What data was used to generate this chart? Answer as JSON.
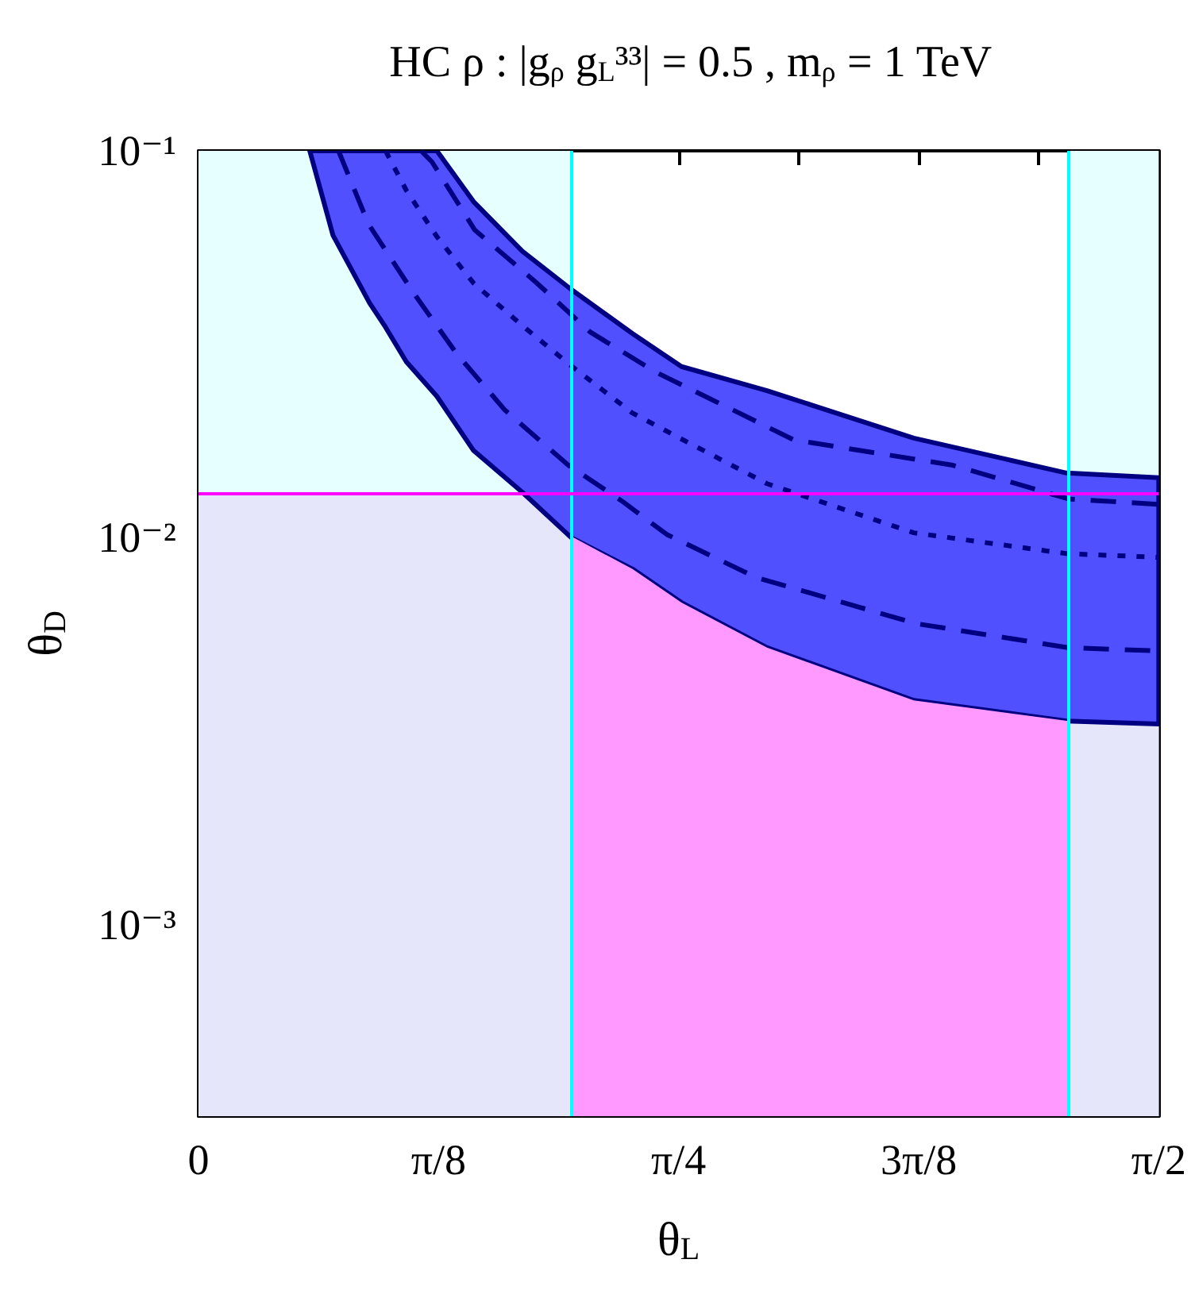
{
  "chart_data": {
    "type": "line",
    "title": "HC ρ : |g$_{ρ}$ g$_{L}$³³| = 0.5 , m$_{ρ}$ = 1 TeV",
    "xlabel": "θ$_{L}$",
    "ylabel": "θ$_{D}$",
    "log": "y",
    "marker": "none",
    "xlim": [
      0,
      1.5708
    ],
    "ylim": [
      0.00032,
      0.1
    ],
    "xticks": [
      {
        "value": 0,
        "label": "0"
      },
      {
        "value": 0.19635,
        "label": null
      },
      {
        "value": 0.3927,
        "label": "π/8"
      },
      {
        "value": 0.58905,
        "label": null
      },
      {
        "value": 0.7854,
        "label": "π/4"
      },
      {
        "value": 0.98175,
        "label": null
      },
      {
        "value": 1.1781,
        "label": "3π/8"
      },
      {
        "value": 1.37445,
        "label": null
      },
      {
        "value": 1.5708,
        "label": "π/2"
      }
    ],
    "yticks": [
      {
        "value": 0.0004,
        "label": null
      },
      {
        "value": 0.0005,
        "label": null
      },
      {
        "value": 0.0006,
        "label": null
      },
      {
        "value": 0.0007,
        "label": null
      },
      {
        "value": 0.0008,
        "label": null
      },
      {
        "value": 0.0009,
        "label": null
      },
      {
        "value": 0.001,
        "label": "10⁻³"
      },
      {
        "value": 0.002,
        "label": null
      },
      {
        "value": 0.003,
        "label": null
      },
      {
        "value": 0.004,
        "label": null
      },
      {
        "value": 0.005,
        "label": null
      },
      {
        "value": 0.006,
        "label": null
      },
      {
        "value": 0.007,
        "label": null
      },
      {
        "value": 0.008,
        "label": null
      },
      {
        "value": 0.009,
        "label": null
      },
      {
        "value": 0.01,
        "label": "10⁻²"
      },
      {
        "value": 0.02,
        "label": null
      },
      {
        "value": 0.03,
        "label": null
      },
      {
        "value": 0.04,
        "label": null
      },
      {
        "value": 0.05,
        "label": null
      },
      {
        "value": 0.06,
        "label": null
      },
      {
        "value": 0.07,
        "label": null
      },
      {
        "value": 0.08,
        "label": null
      },
      {
        "value": 0.09,
        "label": null
      },
      {
        "value": 0.1,
        "label": "10⁻¹"
      }
    ],
    "bands": [
      {
        "axis": "x",
        "from": 0,
        "to": 0.609,
        "color": "#e6ffff"
      },
      {
        "axis": "x",
        "from": 1.423,
        "to": 1.5708,
        "color": "#e6ffff"
      },
      {
        "axis": "y",
        "from": 0.00032,
        "to": 0.013,
        "color": "#e6e6fa"
      }
    ],
    "ref_lines": [
      {
        "axis": "x",
        "value": 0.609,
        "color": "#00ffff"
      },
      {
        "axis": "x",
        "value": 1.423,
        "color": "#00ffff"
      },
      {
        "axis": "y",
        "value": 0.013,
        "color": "#ff00ff"
      }
    ],
    "series": [
      {
        "type": "area",
        "color": "#ff99ff",
        "x": [
          0.609,
          0.71,
          0.79,
          0.93,
          1.17,
          1.423
        ],
        "values": [
          0.0101,
          0.0083,
          0.0068,
          0.0052,
          0.0038,
          0.00336
        ]
      },
      {
        "color": "#000080",
        "line_style": "dotted",
        "x": [
          0.182,
          0.22,
          0.28,
          0.306,
          0.34,
          0.39,
          0.45,
          0.53,
          0.61,
          0.71,
          0.79,
          0.93,
          1.17,
          1.42,
          1.5708
        ],
        "values": [
          null,
          null,
          null,
          0.1,
          0.079,
          0.06,
          0.0455,
          0.0353,
          0.0278,
          0.021,
          0.018,
          0.0138,
          0.0103,
          0.0091,
          0.0089
        ],
        "lower": [
          0.1,
          0.0605,
          0.0404,
          0.035,
          0.0285,
          0.0232,
          0.0168,
          0.0131,
          0.01,
          0.0083,
          0.0068,
          0.0052,
          0.0038,
          0.00336,
          0.0033
        ],
        "upper": [
          0.1,
          0.1,
          0.1,
          0.1,
          0.1,
          0.1,
          0.0739,
          0.055,
          0.0438,
          0.0337,
          0.0277,
          0.024,
          0.0181,
          0.0147,
          0.0143
        ]
      },
      {
        "color": "#000080",
        "line_style": "dashed",
        "x": [
          0.364,
          0.382,
          0.452,
          0.553,
          0.641,
          0.748,
          0.974,
          1.234,
          1.423,
          1.5708
        ],
        "values": [
          0.1,
          0.0936,
          0.0624,
          0.0456,
          0.034,
          0.0268,
          0.0179,
          0.0154,
          0.0126,
          0.0122
        ]
      },
      {
        "color": "#000080",
        "line_style": "dashed",
        "x": [
          0.229,
          0.278,
          0.351,
          0.423,
          0.501,
          0.605,
          0.694,
          0.766,
          0.912,
          1.174,
          1.423,
          1.5708
        ],
        "values": [
          0.1,
          0.0647,
          0.0431,
          0.0298,
          0.0214,
          0.0154,
          0.0124,
          0.0102,
          0.0079,
          0.006,
          0.0052,
          0.0051
        ]
      }
    ]
  }
}
